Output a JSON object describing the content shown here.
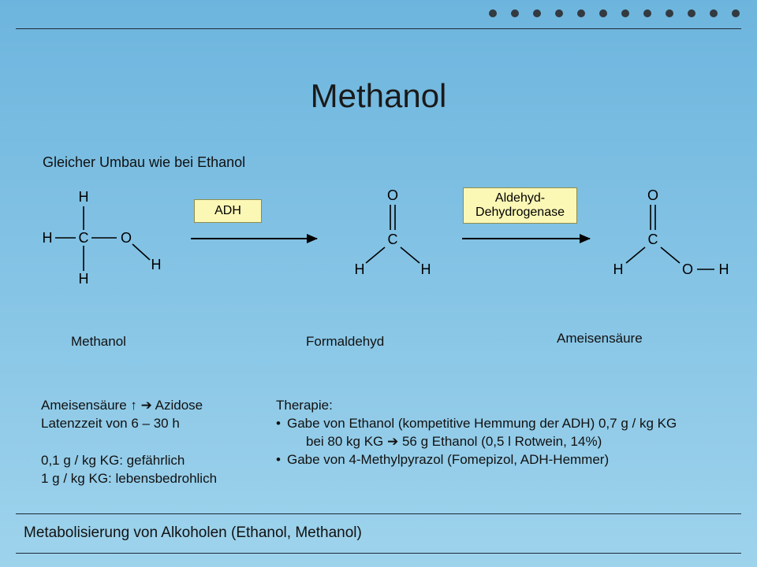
{
  "title": "Methanol",
  "subtitle": "Gleicher Umbau wie bei Ethanol",
  "footer": "Metabolisierung von Alkoholen (Ethanol, Methanol)",
  "dots": {
    "count": 12,
    "color": "#333a40"
  },
  "colors": {
    "bg_top": "#6db5de",
    "bg_bottom": "#9ed3ec",
    "rule": "#1b2a36",
    "enzyme_bg": "#fbf7b5",
    "enzyme_border": "#8d8d4f",
    "text": "#111111",
    "bond": "#000000"
  },
  "reaction": {
    "enzyme1": "ADH",
    "enzyme2_line1": "Aldehyd-",
    "enzyme2_line2": "Dehydrogenase",
    "molecules": [
      {
        "name": "Methanol",
        "type": "methanol"
      },
      {
        "name": "Formaldehyd",
        "type": "formaldehyde"
      },
      {
        "name": "Ameisensäure",
        "type": "formic_acid"
      }
    ]
  },
  "clinical": {
    "line1_a": "Ameisensäure ",
    "line1_b": " Azidose",
    "line2": "Latenzzeit von 6 – 30 h",
    "line3": "0,1 g / kg KG: gefährlich",
    "line4": "1 g / kg KG: lebensbedrohlich"
  },
  "therapy": {
    "head": "Therapie:",
    "b1_l1": "Gabe von Ethanol (kompetitive Hemmung der ADH) 0,7 g / kg KG",
    "b1_l2": "bei 80 kg KG ➔ 56 g Ethanol (0,5 l Rotwein, 14%)",
    "b2": "Gabe von 4-Methylpyrazol (Fomepizol, ADH-Hemmer)"
  },
  "fontsizes": {
    "title": 42,
    "body": 17,
    "subtitle": 18,
    "footer": 19,
    "enzyme": 16
  }
}
